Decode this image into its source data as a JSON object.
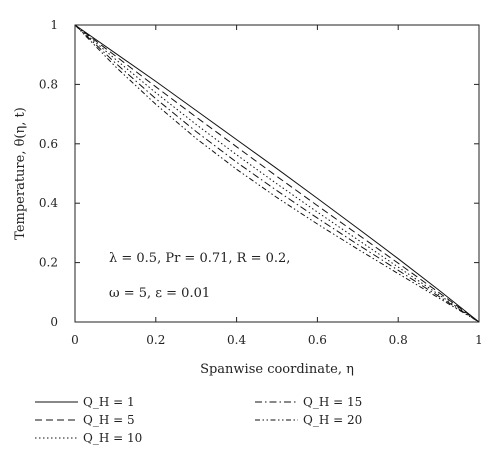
{
  "chart_data": {
    "type": "line",
    "title": "",
    "xlabel": "Spanwise coordinate, η",
    "ylabel": "Temperature, θ(η, t)",
    "xlim": [
      0,
      1
    ],
    "ylim": [
      0,
      1
    ],
    "x_ticks": [
      "0",
      "0.2",
      "0.4",
      "0.6",
      "0.8",
      "1"
    ],
    "y_ticks": [
      "0",
      "0.2",
      "0.4",
      "0.6",
      "0.8",
      "1"
    ],
    "grid": false,
    "legend_position": "bottom",
    "annotation_lines": [
      "λ = 0.5, Pr = 0.71, R = 0.2,",
      "ω = 5, ε = 0.01"
    ],
    "x": [
      0,
      0.1,
      0.2,
      0.3,
      0.4,
      0.5,
      0.6,
      0.7,
      0.8,
      0.9,
      1.0
    ],
    "series": [
      {
        "name": "Q_H = 1",
        "style": "solid",
        "values": [
          1,
          0.905,
          0.81,
          0.712,
          0.614,
          0.516,
          0.416,
          0.315,
          0.213,
          0.108,
          0
        ]
      },
      {
        "name": "Q_H = 5",
        "style": "dashed",
        "values": [
          1,
          0.896,
          0.792,
          0.69,
          0.59,
          0.49,
          0.392,
          0.295,
          0.198,
          0.1,
          0
        ]
      },
      {
        "name": "Q_H = 10",
        "style": "dotted",
        "values": [
          1,
          0.885,
          0.772,
          0.665,
          0.563,
          0.465,
          0.37,
          0.277,
          0.185,
          0.093,
          0
        ]
      },
      {
        "name": "Q_H = 15",
        "style": "dashdot",
        "values": [
          1,
          0.872,
          0.752,
          0.641,
          0.538,
          0.442,
          0.35,
          0.261,
          0.174,
          0.087,
          0
        ]
      },
      {
        "name": "Q_H = 20",
        "style": "dashdot2",
        "values": [
          1,
          0.86,
          0.733,
          0.618,
          0.514,
          0.419,
          0.33,
          0.245,
          0.163,
          0.081,
          0
        ]
      }
    ]
  }
}
